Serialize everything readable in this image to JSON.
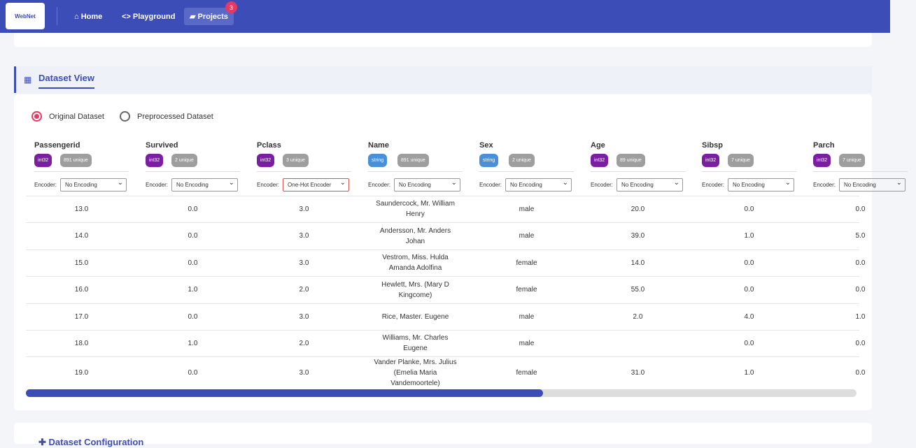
{
  "nav": {
    "logo": "WebNet",
    "links": [
      "Home",
      "Playground",
      "Projects"
    ],
    "badge": "3"
  },
  "section": {
    "title": "Dataset View",
    "options": [
      "Original Dataset",
      "Preprocessed Dataset"
    ]
  },
  "table": {
    "encoder_label": "Encoder:",
    "columns": [
      {
        "name": "Passengerid",
        "dtype": "int32",
        "unique": "891 unique",
        "encoder": "No Encoding"
      },
      {
        "name": "Survived",
        "dtype": "int32",
        "unique": "2 unique",
        "encoder": "No Encoding"
      },
      {
        "name": "Pclass",
        "dtype": "int32",
        "unique": "3 unique",
        "encoder": "One-Hot Encoder"
      },
      {
        "name": "Name",
        "dtype": "string",
        "unique": "891 unique",
        "encoder": "No Encoding"
      },
      {
        "name": "Sex",
        "dtype": "string",
        "unique": "2 unique",
        "encoder": "No Encoding"
      },
      {
        "name": "Age",
        "dtype": "int32",
        "unique": "89 unique",
        "encoder": "No Encoding"
      },
      {
        "name": "Sibsp",
        "dtype": "int32",
        "unique": "7 unique",
        "encoder": "No Encoding"
      },
      {
        "name": "Parch",
        "dtype": "int32",
        "unique": "7 unique",
        "encoder": "No Encoding"
      }
    ],
    "rows": [
      [
        "13.0",
        "0.0",
        "3.0",
        "Saundercock, Mr. William Henry",
        "male",
        "20.0",
        "0.0",
        "0.0"
      ],
      [
        "14.0",
        "0.0",
        "3.0",
        "Andersson, Mr. Anders Johan",
        "male",
        "39.0",
        "1.0",
        "5.0"
      ],
      [
        "15.0",
        "0.0",
        "3.0",
        "Vestrom, Miss. Hulda Amanda Adolfina",
        "female",
        "14.0",
        "0.0",
        "0.0"
      ],
      [
        "16.0",
        "1.0",
        "2.0",
        "Hewlett, Mrs. (Mary D Kingcome)",
        "female",
        "55.0",
        "0.0",
        "0.0"
      ],
      [
        "17.0",
        "0.0",
        "3.0",
        "Rice, Master. Eugene",
        "male",
        "2.0",
        "4.0",
        "1.0"
      ],
      [
        "18.0",
        "1.0",
        "2.0",
        "Williams, Mr. Charles Eugene",
        "male",
        null,
        "0.0",
        "0.0"
      ],
      [
        "19.0",
        "0.0",
        "3.0",
        "Vander Planke, Mrs. Julius (Emelia Maria Vandemoortele)",
        "female",
        "31.0",
        "1.0",
        "0.0"
      ]
    ]
  },
  "next_section": {
    "title": "Dataset Configuration"
  }
}
